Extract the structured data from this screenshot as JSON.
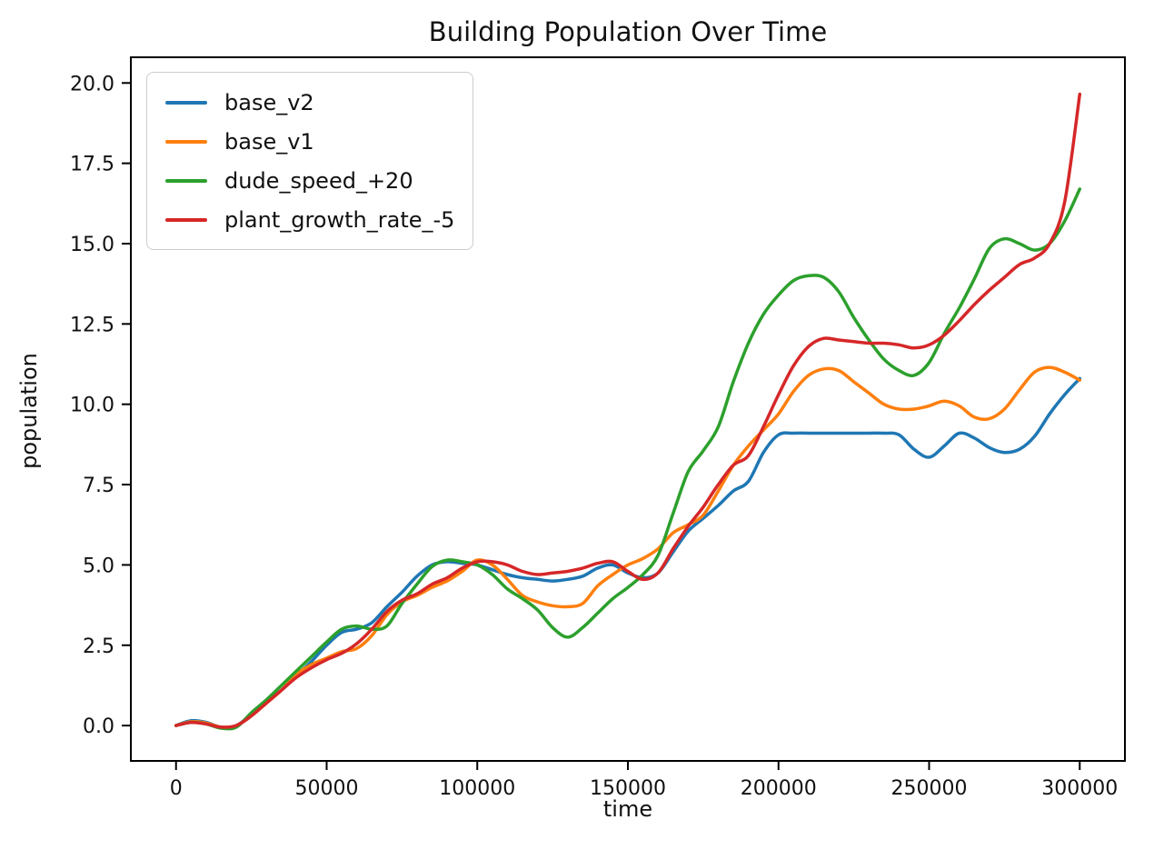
{
  "chart_data": {
    "type": "line",
    "title": "Building Population Over Time",
    "xlabel": "time",
    "ylabel": "population",
    "xlim": [
      -15000,
      315000
    ],
    "ylim": [
      -1.1,
      20.8
    ],
    "grid": false,
    "legend_position": "upper left",
    "background_color": "#ffffff",
    "axis_color": "#000000",
    "legend_border_color": "#cccccc",
    "x_ticks": [
      0,
      50000,
      100000,
      150000,
      200000,
      250000,
      300000
    ],
    "x_tick_labels": [
      "0",
      "50000",
      "100000",
      "150000",
      "200000",
      "250000",
      "300000"
    ],
    "y_ticks": [
      0.0,
      2.5,
      5.0,
      7.5,
      10.0,
      12.5,
      15.0,
      17.5,
      20.0
    ],
    "y_tick_labels": [
      "0.0",
      "2.5",
      "5.0",
      "7.5",
      "10.0",
      "12.5",
      "15.0",
      "17.5",
      "20.0"
    ],
    "x": [
      0,
      5000,
      10000,
      15000,
      20000,
      25000,
      30000,
      35000,
      40000,
      45000,
      50000,
      55000,
      60000,
      65000,
      70000,
      75000,
      80000,
      85000,
      90000,
      95000,
      100000,
      105000,
      110000,
      115000,
      120000,
      125000,
      130000,
      135000,
      140000,
      145000,
      150000,
      155000,
      160000,
      165000,
      170000,
      175000,
      180000,
      185000,
      190000,
      195000,
      200000,
      205000,
      210000,
      215000,
      220000,
      225000,
      230000,
      235000,
      240000,
      245000,
      250000,
      255000,
      260000,
      265000,
      270000,
      275000,
      280000,
      285000,
      290000,
      295000,
      300000
    ],
    "series": [
      {
        "name": "base_v2",
        "label": "base_v2",
        "color": "#1f77b4",
        "values": [
          0,
          0.15,
          0.1,
          -0.05,
          0,
          0.35,
          0.75,
          1.1,
          1.55,
          2.0,
          2.5,
          2.9,
          3.0,
          3.2,
          3.7,
          4.15,
          4.65,
          5.0,
          5.1,
          5.05,
          5.0,
          4.85,
          4.7,
          4.6,
          4.55,
          4.5,
          4.55,
          4.65,
          4.9,
          5.0,
          4.75,
          4.6,
          4.75,
          5.4,
          6.05,
          6.45,
          6.85,
          7.3,
          7.6,
          8.5,
          9.05,
          9.1,
          9.1,
          9.1,
          9.1,
          9.1,
          9.1,
          9.1,
          9.05,
          8.6,
          8.35,
          8.7,
          9.1,
          8.95,
          8.65,
          8.5,
          8.6,
          9.0,
          9.7,
          10.3,
          10.8
        ]
      },
      {
        "name": "base_v1",
        "label": "base_v1",
        "color": "#ff7f0e",
        "values": [
          0,
          0.12,
          0.08,
          -0.05,
          0,
          0.3,
          0.7,
          1.1,
          1.6,
          1.9,
          2.1,
          2.3,
          2.4,
          2.8,
          3.45,
          3.85,
          4.05,
          4.3,
          4.5,
          4.8,
          5.15,
          5.0,
          4.55,
          4.05,
          3.85,
          3.73,
          3.7,
          3.8,
          4.35,
          4.7,
          5.0,
          5.2,
          5.5,
          6.0,
          6.25,
          6.55,
          7.3,
          8.1,
          8.7,
          9.2,
          9.7,
          10.4,
          10.9,
          11.1,
          11.05,
          10.7,
          10.35,
          10.0,
          9.85,
          9.85,
          9.95,
          10.1,
          9.95,
          9.6,
          9.55,
          9.85,
          10.45,
          11.0,
          11.15,
          11.0,
          10.75
        ]
      },
      {
        "name": "dude_speed_+20",
        "label": "dude_speed_+20",
        "color": "#2ca02c",
        "values": [
          0,
          0.1,
          0.05,
          -0.08,
          -0.05,
          0.4,
          0.8,
          1.25,
          1.7,
          2.15,
          2.6,
          3.0,
          3.1,
          3.0,
          3.1,
          3.8,
          4.4,
          4.95,
          5.15,
          5.1,
          5.0,
          4.7,
          4.25,
          3.95,
          3.6,
          3.05,
          2.75,
          3.05,
          3.5,
          3.95,
          4.3,
          4.7,
          5.3,
          6.6,
          7.9,
          8.55,
          9.3,
          10.7,
          11.9,
          12.8,
          13.4,
          13.85,
          14.0,
          13.95,
          13.5,
          12.7,
          12.0,
          11.4,
          11.05,
          10.9,
          11.3,
          12.2,
          13.0,
          13.9,
          14.85,
          15.15,
          15.0,
          14.8,
          15.0,
          15.7,
          16.7
        ]
      },
      {
        "name": "plant_growth_rate_-5",
        "label": "plant_growth_rate_-5",
        "color": "#d62728",
        "values": [
          0,
          0.1,
          0.05,
          -0.05,
          0,
          0.3,
          0.7,
          1.1,
          1.5,
          1.8,
          2.05,
          2.25,
          2.55,
          3.0,
          3.55,
          3.9,
          4.1,
          4.4,
          4.6,
          4.9,
          5.1,
          5.1,
          5.0,
          4.8,
          4.7,
          4.75,
          4.8,
          4.9,
          5.05,
          5.1,
          4.8,
          4.55,
          4.75,
          5.5,
          6.2,
          6.8,
          7.5,
          8.1,
          8.4,
          9.3,
          10.3,
          11.2,
          11.8,
          12.05,
          12.0,
          11.95,
          11.9,
          11.9,
          11.85,
          11.75,
          11.85,
          12.15,
          12.6,
          13.1,
          13.55,
          13.95,
          14.35,
          14.55,
          15.0,
          16.3,
          19.65
        ]
      }
    ]
  }
}
